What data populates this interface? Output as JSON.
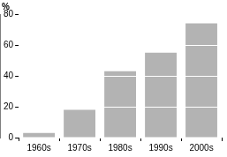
{
  "chart_data": {
    "type": "bar",
    "y_label": "%",
    "categories": [
      "1960s",
      "1970s",
      "1980s",
      "1990s",
      "2000s"
    ],
    "values": [
      3,
      18,
      43,
      55,
      74
    ],
    "color": "#b3b3b3",
    "ylim": [
      0,
      80
    ],
    "yticks": [
      0,
      20,
      40,
      60,
      80
    ],
    "grid": true
  }
}
